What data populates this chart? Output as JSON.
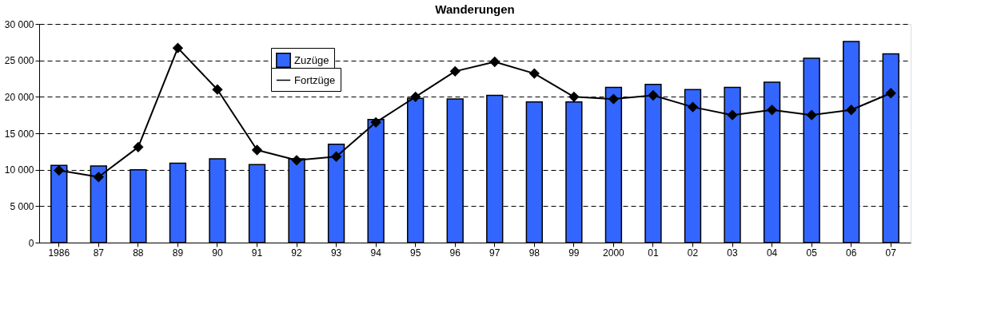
{
  "chart_data": {
    "type": "bar",
    "title": "Wanderungen",
    "categories": [
      "1986",
      "87",
      "88",
      "89",
      "90",
      "91",
      "92",
      "93",
      "94",
      "95",
      "96",
      "97",
      "98",
      "99",
      "2000",
      "01",
      "02",
      "03",
      "04",
      "05",
      "06",
      "07"
    ],
    "series": [
      {
        "name": "Zuzüge",
        "color": "#3366ff",
        "values": [
          10600,
          10500,
          10000,
          10900,
          11500,
          10700,
          11500,
          13500,
          16900,
          19800,
          19700,
          20200,
          19300,
          19300,
          21300,
          21700,
          21000,
          21300,
          22000,
          25300,
          27600,
          25900
        ]
      },
      {
        "name": "Fortzüge",
        "type": "line",
        "color": "#000000",
        "marker": "diamond",
        "values": [
          9900,
          9000,
          13100,
          26700,
          21000,
          12700,
          11300,
          11800,
          16500,
          20000,
          23500,
          24800,
          23200,
          20000,
          19700,
          20200,
          18600,
          17500,
          18200,
          17500,
          18200,
          20500
        ]
      }
    ],
    "ylim": [
      0,
      30000
    ],
    "yticks": [
      0,
      {
        "value": 5000,
        "label": "5 000"
      },
      {
        "value": 10000,
        "label": "10 000"
      },
      {
        "value": 15000,
        "label": "15 000"
      },
      {
        "value": 20000,
        "label": "20 000"
      },
      {
        "value": 25000,
        "label": "25 000"
      },
      {
        "value": 30000,
        "label": "30 000"
      }
    ],
    "grid": "y",
    "legend": "top"
  }
}
